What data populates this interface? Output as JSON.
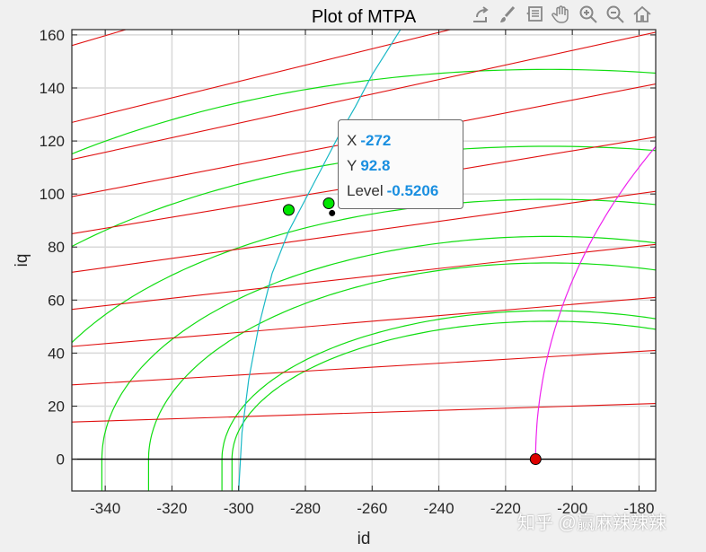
{
  "toolbar": {
    "icons": [
      "export-icon",
      "brush-icon",
      "datatip-icon",
      "pan-hand-icon",
      "zoom-in-icon",
      "zoom-out-icon",
      "home-icon"
    ]
  },
  "datatip": {
    "x_label": "X",
    "x_value": "-272",
    "y_label": "Y",
    "y_value": "92.8",
    "level_label": "Level",
    "level_value": "-0.5206"
  },
  "watermark": "知乎 @赢麻辣辣辣",
  "chart_data": {
    "type": "line",
    "title": "Plot of MTPA",
    "xlabel": "id",
    "ylabel": "iq",
    "xlim": [
      -350,
      -175
    ],
    "ylim": [
      -12,
      162
    ],
    "xticks": [
      -340,
      -320,
      -300,
      -280,
      -260,
      -240,
      -220,
      -200,
      -180
    ],
    "yticks": [
      0,
      20,
      40,
      60,
      80,
      100,
      120,
      140,
      160
    ],
    "grid": true,
    "colors": {
      "torque": "#e01010",
      "voltage": "#10dd10",
      "mtpa": "#19b8c6",
      "current_limit": "#ee22ee",
      "zero_line": "#000000",
      "green_marker": "#00e600",
      "red_marker": "#dd0000"
    },
    "series": {
      "torque_contours": [
        {
          "id_at_minus350": 14,
          "id_at_minus175": 21
        },
        {
          "id_at_minus350": 28,
          "id_at_minus175": 41
        },
        {
          "id_at_minus350": 42.5,
          "id_at_minus175": 61
        },
        {
          "id_at_minus350": 56.5,
          "id_at_minus175": 81
        },
        {
          "id_at_minus350": 70.5,
          "id_at_minus175": 101
        },
        {
          "id_at_minus350": 85,
          "id_at_minus175": 121.5
        },
        {
          "id_at_minus350": 99,
          "id_at_minus175": 141.5
        },
        {
          "id_at_minus350": 113,
          "id_at_minus175": 161
        },
        {
          "id_at_minus350": 127,
          "id_at_minus175": 181
        },
        {
          "id_at_minus350": 156,
          "id_at_minus175": 221
        }
      ],
      "voltage_ellipses": [
        {
          "center_id": -207,
          "semi_id": 95,
          "semi_iq": 52
        },
        {
          "center_id": -207,
          "semi_id": 98,
          "semi_iq": 56
        },
        {
          "center_id": -207,
          "semi_id": 120,
          "semi_iq": 74
        },
        {
          "center_id": -207,
          "semi_id": 134,
          "semi_iq": 84
        },
        {
          "center_id": -207,
          "semi_id": 160,
          "semi_iq": 98
        },
        {
          "center_id": -207,
          "semi_id": 195,
          "semi_iq": 118
        },
        {
          "center_id": -207,
          "semi_id": 230,
          "semi_iq": 147
        }
      ],
      "mtpa_curve": {
        "id": [
          -300,
          -299,
          -297,
          -294,
          -290,
          -285,
          -280,
          -275,
          -270,
          -265,
          -260,
          -255,
          -250
        ],
        "iq": [
          -12,
          10,
          30,
          50,
          70,
          86,
          98,
          110,
          122,
          133,
          145,
          155,
          165
        ]
      },
      "current_limit_circle": {
        "radius": 211
      },
      "points": [
        {
          "name": "mtpa-point",
          "id": -285,
          "iq": 94,
          "color": "green"
        },
        {
          "name": "intersection-point",
          "id": -273,
          "iq": 96.5,
          "color": "green"
        },
        {
          "name": "datatip-point",
          "id": -272,
          "iq": 92.8,
          "color": "black"
        },
        {
          "name": "max-current-point",
          "id": -211,
          "iq": 0,
          "color": "red"
        }
      ]
    }
  }
}
